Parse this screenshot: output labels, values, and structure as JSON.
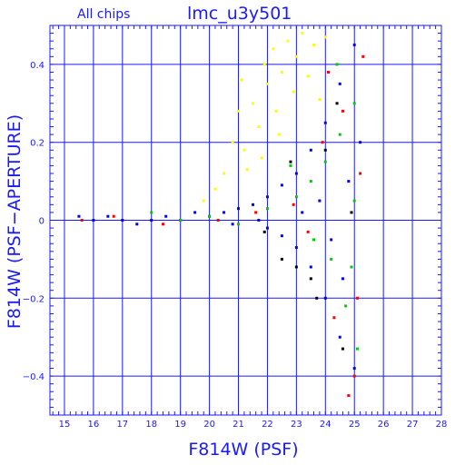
{
  "chart_data": {
    "type": "scatter",
    "title": "lmc_u3y501",
    "subtitle": "All chips",
    "xlabel": "F814W (PSF)",
    "ylabel": "F814W (PSF−APERTURE)",
    "xlim": [
      14.5,
      28
    ],
    "ylim": [
      -0.5,
      0.5
    ],
    "xticks": [
      15,
      16,
      17,
      18,
      19,
      20,
      21,
      22,
      23,
      24,
      25,
      26,
      27,
      28
    ],
    "xtick_labels": [
      "15",
      "16",
      "17",
      "18",
      "19",
      "20",
      "21",
      "22",
      "23",
      "24",
      "25",
      "26",
      "27",
      "28"
    ],
    "yticks": [
      -0.4,
      -0.2,
      0,
      0.2,
      0.4
    ],
    "ytick_labels": [
      "−0.4",
      "−0.2",
      "0",
      "0.2",
      "0.4"
    ],
    "grid": true,
    "point_colors": [
      "#ff0000",
      "#00cc00",
      "#0000ff",
      "#ffff00",
      "#000000"
    ],
    "series": [
      {
        "color": "#ffff00",
        "points": [
          [
            20.5,
            0.12
          ],
          [
            20.8,
            0.2
          ],
          [
            21,
            0.28
          ],
          [
            21.2,
            0.18
          ],
          [
            21.5,
            0.3
          ],
          [
            21.7,
            0.24
          ],
          [
            21.9,
            0.4
          ],
          [
            22,
            0.35
          ],
          [
            22.2,
            0.44
          ],
          [
            22.3,
            0.28
          ],
          [
            22.5,
            0.38
          ],
          [
            22.7,
            0.46
          ],
          [
            22.9,
            0.33
          ],
          [
            23,
            0.42
          ],
          [
            23.2,
            0.48
          ],
          [
            23.4,
            0.37
          ],
          [
            23.6,
            0.45
          ],
          [
            23.8,
            0.31
          ],
          [
            24,
            0.47
          ],
          [
            21.3,
            0.13
          ],
          [
            21.8,
            0.16
          ],
          [
            22.4,
            0.22
          ],
          [
            20.2,
            0.08
          ],
          [
            19.8,
            0.05
          ],
          [
            21.1,
            0.36
          ]
        ]
      },
      {
        "color": "#0000ff",
        "points": [
          [
            15.5,
            0.01
          ],
          [
            16,
            0.0
          ],
          [
            16.5,
            0.01
          ],
          [
            17,
            0
          ],
          [
            17.5,
            -0.01
          ],
          [
            18,
            0
          ],
          [
            18.5,
            0.01
          ],
          [
            19,
            0
          ],
          [
            19.5,
            0.02
          ],
          [
            20,
            0.01
          ],
          [
            20.5,
            0.02
          ],
          [
            21,
            0.03
          ],
          [
            21.5,
            0.04
          ],
          [
            22,
            0.06
          ],
          [
            22.5,
            0.09
          ],
          [
            23,
            0.12
          ],
          [
            23.5,
            0.18
          ],
          [
            24,
            0.25
          ],
          [
            24.5,
            0.35
          ],
          [
            25,
            0.45
          ],
          [
            22,
            -0.02
          ],
          [
            22.5,
            -0.04
          ],
          [
            23,
            -0.07
          ],
          [
            23.5,
            -0.12
          ],
          [
            24,
            -0.2
          ],
          [
            24.5,
            -0.3
          ],
          [
            25,
            -0.38
          ],
          [
            23.8,
            0.05
          ],
          [
            24.2,
            -0.05
          ],
          [
            24.8,
            0.1
          ],
          [
            24.6,
            -0.15
          ],
          [
            25.2,
            0.2
          ],
          [
            23.2,
            0.02
          ],
          [
            21.7,
            0.0
          ],
          [
            20.8,
            -0.01
          ]
        ]
      },
      {
        "color": "#00cc00",
        "points": [
          [
            18,
            0.02
          ],
          [
            19,
            0.0
          ],
          [
            20,
            0.01
          ],
          [
            21,
            -0.01
          ],
          [
            22,
            0.03
          ],
          [
            23,
            0.06
          ],
          [
            23.5,
            0.1
          ],
          [
            24,
            0.15
          ],
          [
            24.5,
            0.22
          ],
          [
            25,
            0.3
          ],
          [
            24.2,
            -0.1
          ],
          [
            24.7,
            -0.22
          ],
          [
            25.1,
            -0.33
          ],
          [
            23.6,
            -0.05
          ],
          [
            22.8,
            0.14
          ],
          [
            24.4,
            0.4
          ],
          [
            25,
            0.05
          ],
          [
            24.9,
            -0.12
          ]
        ]
      },
      {
        "color": "#ff0000",
        "points": [
          [
            15.6,
            0.0
          ],
          [
            16.7,
            0.01
          ],
          [
            18.4,
            -0.01
          ],
          [
            20.3,
            0.0
          ],
          [
            21.6,
            0.02
          ],
          [
            22.9,
            0.04
          ],
          [
            23.9,
            0.2
          ],
          [
            24.6,
            0.28
          ],
          [
            25.3,
            0.42
          ],
          [
            24.3,
            -0.25
          ],
          [
            25,
            -0.4
          ],
          [
            24.8,
            -0.45
          ],
          [
            23.4,
            -0.03
          ],
          [
            25.2,
            0.12
          ],
          [
            24.1,
            0.38
          ],
          [
            25.1,
            -0.2
          ]
        ]
      },
      {
        "color": "#000000",
        "points": [
          [
            22.5,
            -0.1
          ],
          [
            23,
            -0.12
          ],
          [
            23.5,
            -0.15
          ],
          [
            24,
            0.18
          ],
          [
            24.4,
            0.3
          ],
          [
            22.8,
            0.15
          ],
          [
            23.7,
            -0.2
          ],
          [
            24.9,
            0.02
          ],
          [
            21.9,
            -0.03
          ],
          [
            24.6,
            -0.33
          ]
        ]
      }
    ]
  }
}
